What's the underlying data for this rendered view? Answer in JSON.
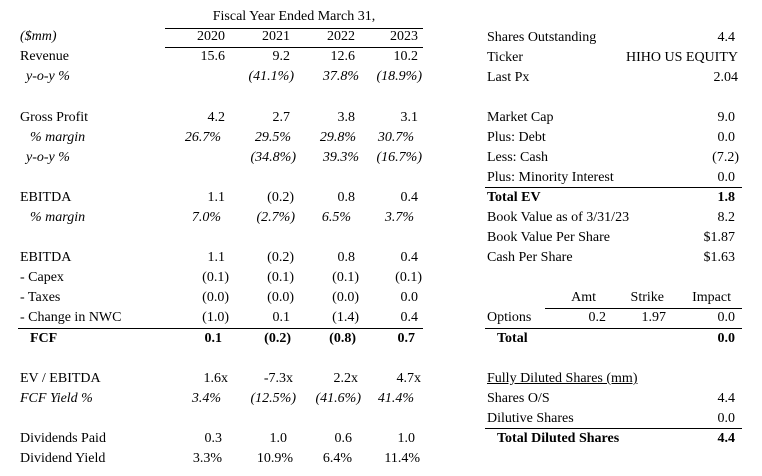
{
  "left": {
    "period_header": "Fiscal Year Ended March 31,",
    "unit_label": "($mm)",
    "years": [
      "2020",
      "2021",
      "2022",
      "2023"
    ],
    "revenue": {
      "label": "Revenue",
      "values": [
        "15.6",
        "9.2",
        "12.6",
        "10.2"
      ]
    },
    "revenue_yoy": {
      "label": "y-o-y %",
      "values": [
        "",
        "(41.1%)",
        "37.8%",
        "(18.9%)"
      ]
    },
    "gross_profit": {
      "label": "Gross Profit",
      "values": [
        "4.2",
        "2.7",
        "3.8",
        "3.1"
      ]
    },
    "gross_margin": {
      "label": "% margin",
      "values": [
        "26.7%",
        "29.5%",
        "29.8%",
        "30.7%"
      ]
    },
    "gross_yoy": {
      "label": "y-o-y %",
      "values": [
        "",
        "(34.8%)",
        "39.3%",
        "(16.7%)"
      ]
    },
    "ebitda": {
      "label": "EBITDA",
      "values": [
        "1.1",
        "(0.2)",
        "0.8",
        "0.4"
      ]
    },
    "ebitda_margin": {
      "label": "% margin",
      "values": [
        "7.0%",
        "(2.7%)",
        "6.5%",
        "3.7%"
      ]
    },
    "fcf_ebitda": {
      "label": "EBITDA",
      "values": [
        "1.1",
        "(0.2)",
        "0.8",
        "0.4"
      ]
    },
    "capex": {
      "label": "- Capex",
      "values": [
        "(0.1)",
        "(0.1)",
        "(0.1)",
        "(0.1)"
      ]
    },
    "taxes": {
      "label": "- Taxes",
      "values": [
        "(0.0)",
        "(0.0)",
        "(0.0)",
        "0.0"
      ]
    },
    "nwc": {
      "label": "- Change in NWC",
      "values": [
        "(1.0)",
        "0.1",
        "(1.4)",
        "0.4"
      ]
    },
    "fcf": {
      "label": "FCF",
      "values": [
        "0.1",
        "(0.2)",
        "(0.8)",
        "0.7"
      ]
    },
    "ev_ebitda": {
      "label": "EV / EBITDA",
      "values": [
        "1.6x",
        "-7.3x",
        "2.2x",
        "4.7x"
      ]
    },
    "fcf_yield": {
      "label": "FCF Yield %",
      "values": [
        "3.4%",
        "(12.5%)",
        "(41.6%)",
        "41.4%"
      ]
    },
    "dividends": {
      "label": "Dividends Paid",
      "values": [
        "0.3",
        "1.0",
        "0.6",
        "1.0"
      ]
    },
    "div_yield": {
      "label": "Dividend Yield",
      "values": [
        "3.3%",
        "10.9%",
        "6.4%",
        "11.4%"
      ]
    }
  },
  "right": {
    "shares_outstanding": {
      "label": "Shares Outstanding",
      "value": "4.4"
    },
    "ticker": {
      "label": "Ticker",
      "value": "HIHO US EQUITY"
    },
    "last_px": {
      "label": "Last Px",
      "value": "2.04"
    },
    "market_cap": {
      "label": "Market Cap",
      "value": "9.0"
    },
    "plus_debt": {
      "label": "Plus: Debt",
      "value": "0.0"
    },
    "less_cash": {
      "label": "Less: Cash",
      "value": "(7.2)"
    },
    "plus_minority": {
      "label": "Plus: Minority Interest",
      "value": "0.0"
    },
    "total_ev": {
      "label": "Total EV",
      "value": "1.8"
    },
    "book_value": {
      "label": "Book Value as of 3/31/23",
      "value": "8.2"
    },
    "bvps": {
      "label": "Book Value Per Share",
      "value": "$1.87"
    },
    "cash_ps": {
      "label": "Cash Per Share",
      "value": "$1.63"
    },
    "options_header": {
      "amt": "Amt",
      "strike": "Strike",
      "impact": "Impact"
    },
    "options": {
      "label": "Options",
      "amt": "0.2",
      "strike": "1.97",
      "impact": "0.0"
    },
    "options_total": {
      "label": "Total",
      "value": "0.0"
    },
    "fds_header": "Fully Diluted Shares (mm)",
    "shares_os": {
      "label": "Shares O/S",
      "value": "4.4"
    },
    "dilutive": {
      "label": "Dilutive Shares",
      "value": "0.0"
    },
    "total_diluted": {
      "label": "Total Diluted Shares",
      "value": "4.4"
    }
  }
}
